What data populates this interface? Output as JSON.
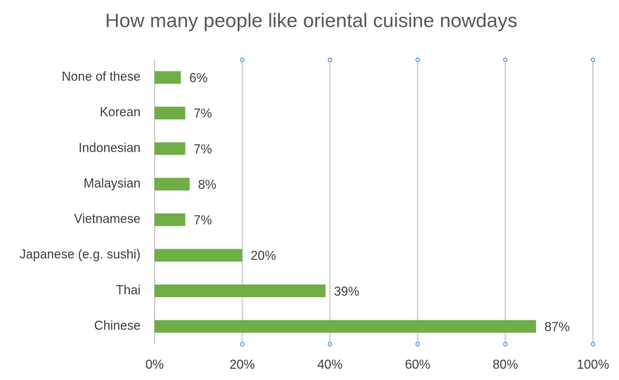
{
  "chart_data": {
    "type": "bar",
    "orientation": "horizontal",
    "title": "How many people like oriental cuisine nowdays",
    "categories": [
      "None of these",
      "Korean",
      "Indonesian",
      "Malaysian",
      "Vietnamese",
      "Japanese (e.g. sushi)",
      "Thai",
      "Chinese"
    ],
    "values": [
      6,
      7,
      7,
      8,
      7,
      20,
      39,
      87
    ],
    "value_labels": [
      "6%",
      "7%",
      "7%",
      "8%",
      "7%",
      "20%",
      "39%",
      "87%"
    ],
    "color": "#70ad47",
    "xlim": [
      0,
      100
    ],
    "xticks": [
      {
        "value": 0,
        "label": "0%"
      },
      {
        "value": 20,
        "label": "20%"
      },
      {
        "value": 40,
        "label": "40%"
      },
      {
        "value": 60,
        "label": "60%"
      },
      {
        "value": 80,
        "label": "80%"
      },
      {
        "value": 100,
        "label": "100%"
      }
    ],
    "grid": true
  }
}
